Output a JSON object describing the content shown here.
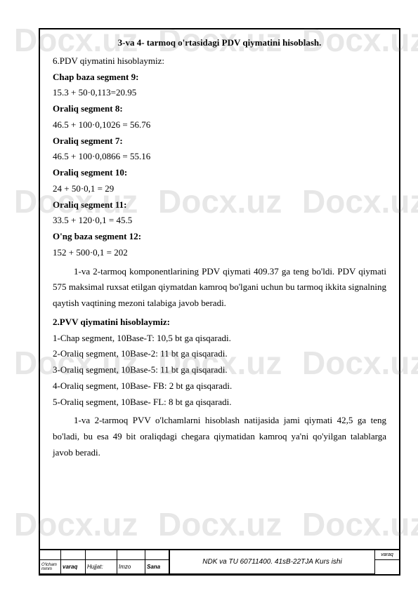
{
  "watermark": "Docx.uz",
  "content": {
    "title": "3-va 4- tarmoq o'rtasidagi PDV qiymatini hisoblash.",
    "line1": "6.PDV qiymatini hisoblaymiz:",
    "seg9_label": "Chap baza segment 9:",
    "seg9_calc": "15.3 + 50·0,113=20.95",
    "seg8_label": "Oraliq segment 8:",
    "seg8_calc": "46.5 + 100·0,1026 = 56.76",
    "seg7_label": "Oraliq segment 7:",
    "seg7_calc": "46.5 + 100·0,0866 = 55.16",
    "seg10_label": "Oraliq segment 10:",
    "seg10_calc": "24 + 50·0,1 = 29",
    "seg11_label": "Oraliq segment 11:",
    "seg11_calc": "33.5 + 120·0,1 = 45.5",
    "seg12_label": "O'ng baza segment 12:",
    "seg12_calc": "152 + 500·0,1 = 202",
    "para1": "1-va 2-tarmoq komponentlarining PDV qiymati  409.37 ga teng bo'ldi. PDV qiymati 575 maksimal ruxsat etilgan qiymatdan kamroq bo'lgani uchun bu tarmoq ikkita signalning qaytish vaqtining mezoni talabiga javob beradi.",
    "pvv_label": "2.PVV qiymatini hisoblaymiz:",
    "pvv1": "1-Chap segment,  10Base-T: 10,5 bt ga qisqaradi.",
    "pvv2": "2-Oraliq segment,  10Base-2: 11 bt ga qisqaradi.",
    "pvv3": "3-Oraliq segment,  10Base-5: 11 bt ga qisqaradi.",
    "pvv4": "4-Oraliq segment,  10Base- FB: 2 bt ga qisqaradi.",
    "pvv5": "5-Oraliq segment,  10Base- FL: 8 bt ga qisqaradi.",
    "para2": "1-va 2-tarmoq PVV o'lchamlarni hisoblash natijasida  jami qiymati 42,5 ga teng bo'ladi, bu esa 49 bit oraliqdagi chegara qiymatidan kamroq ya'ni qo'yilgan talablarga javob beradi."
  },
  "titleblock": {
    "olcham": "O'lcham mmm",
    "varaq": "varaq",
    "hujjat": "Hujjat:",
    "imzo": "Imzo",
    "sana": "Sana",
    "main": "NDK va TU  60711400. 41sB-22TJA Kurs ishi",
    "varaq_label": "varaq"
  }
}
